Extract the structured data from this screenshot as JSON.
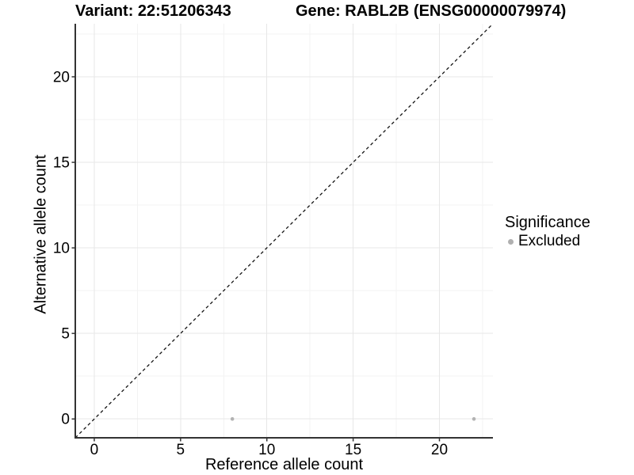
{
  "header": {
    "variant_title": "Variant: 22:51206343",
    "gene_title": "Gene: RABL2B (ENSG00000079974)"
  },
  "chart_data": {
    "type": "scatter",
    "titles": [
      "Variant: 22:51206343",
      "Gene: RABL2B (ENSG00000079974)"
    ],
    "xlabel": "Reference allele count",
    "ylabel": "Alternative allele count",
    "xlim": [
      -1.1,
      23.1
    ],
    "ylim": [
      -1.1,
      23.1
    ],
    "x_ticks": [
      0,
      5,
      10,
      15,
      20
    ],
    "y_ticks": [
      0,
      5,
      10,
      15,
      20
    ],
    "x_minor_ticks": [
      2.5,
      7.5,
      12.5,
      17.5,
      22.5
    ],
    "y_minor_ticks": [
      2.5,
      7.5,
      12.5,
      17.5,
      22.5
    ],
    "grid": true,
    "series": [
      {
        "name": "Excluded",
        "color": "#b3b3b3",
        "point_radius": 2.3,
        "points": [
          [
            8,
            0
          ],
          [
            22,
            0
          ]
        ]
      }
    ],
    "reference_line": {
      "type": "identity",
      "x1": -1.1,
      "y1": -1.1,
      "x2": 23.1,
      "y2": 23.1,
      "style": "dashed",
      "color": "#141414"
    },
    "legend": {
      "title": "Significance",
      "position": "right",
      "items": [
        {
          "label": "Excluded",
          "color": "#b0b0b0",
          "marker": "dot-icon"
        }
      ]
    }
  },
  "colors": {
    "background": "#ffffff",
    "axis_line": "#333333",
    "tick_mark": "#333333",
    "tick_label": "#000000",
    "grid_major": "#e7e7e7",
    "grid_minor": "#f3f3f3"
  }
}
